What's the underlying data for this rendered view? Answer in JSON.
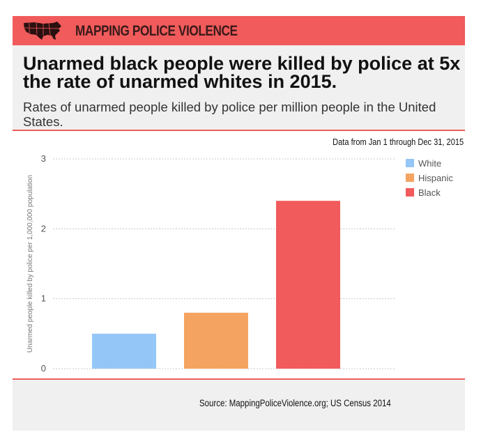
{
  "brand": {
    "name": "MAPPING POLICE VIOLENCE",
    "icon": "us-map-icon"
  },
  "headline": "Unarmed black people were killed by police at 5x the rate of unarmed whites in 2015.",
  "subtitle": "Rates of unarmed people killed by police per million people in the United States.",
  "date_range": "Data from Jan 1 through Dec 31, 2015",
  "source": "Source: MappingPoliceViolence.org; US Census 2014",
  "colors": {
    "accent": "#f15b5b",
    "panel": "#f0f0f0"
  },
  "chart_data": {
    "type": "bar",
    "categories": [
      "White",
      "Hispanic",
      "Black"
    ],
    "values": [
      0.5,
      0.8,
      2.4
    ],
    "colors": [
      "#94c7f7",
      "#f4a460",
      "#f15b5b"
    ],
    "title": "",
    "xlabel": "",
    "ylabel": "Unarmed people killed by police per 1,000,000 population",
    "ylim": [
      0,
      3
    ],
    "yticks": [
      0,
      1,
      2,
      3
    ],
    "grid": true,
    "legend": "top-right",
    "legend_entries": [
      "White",
      "Hispanic",
      "Black"
    ]
  }
}
